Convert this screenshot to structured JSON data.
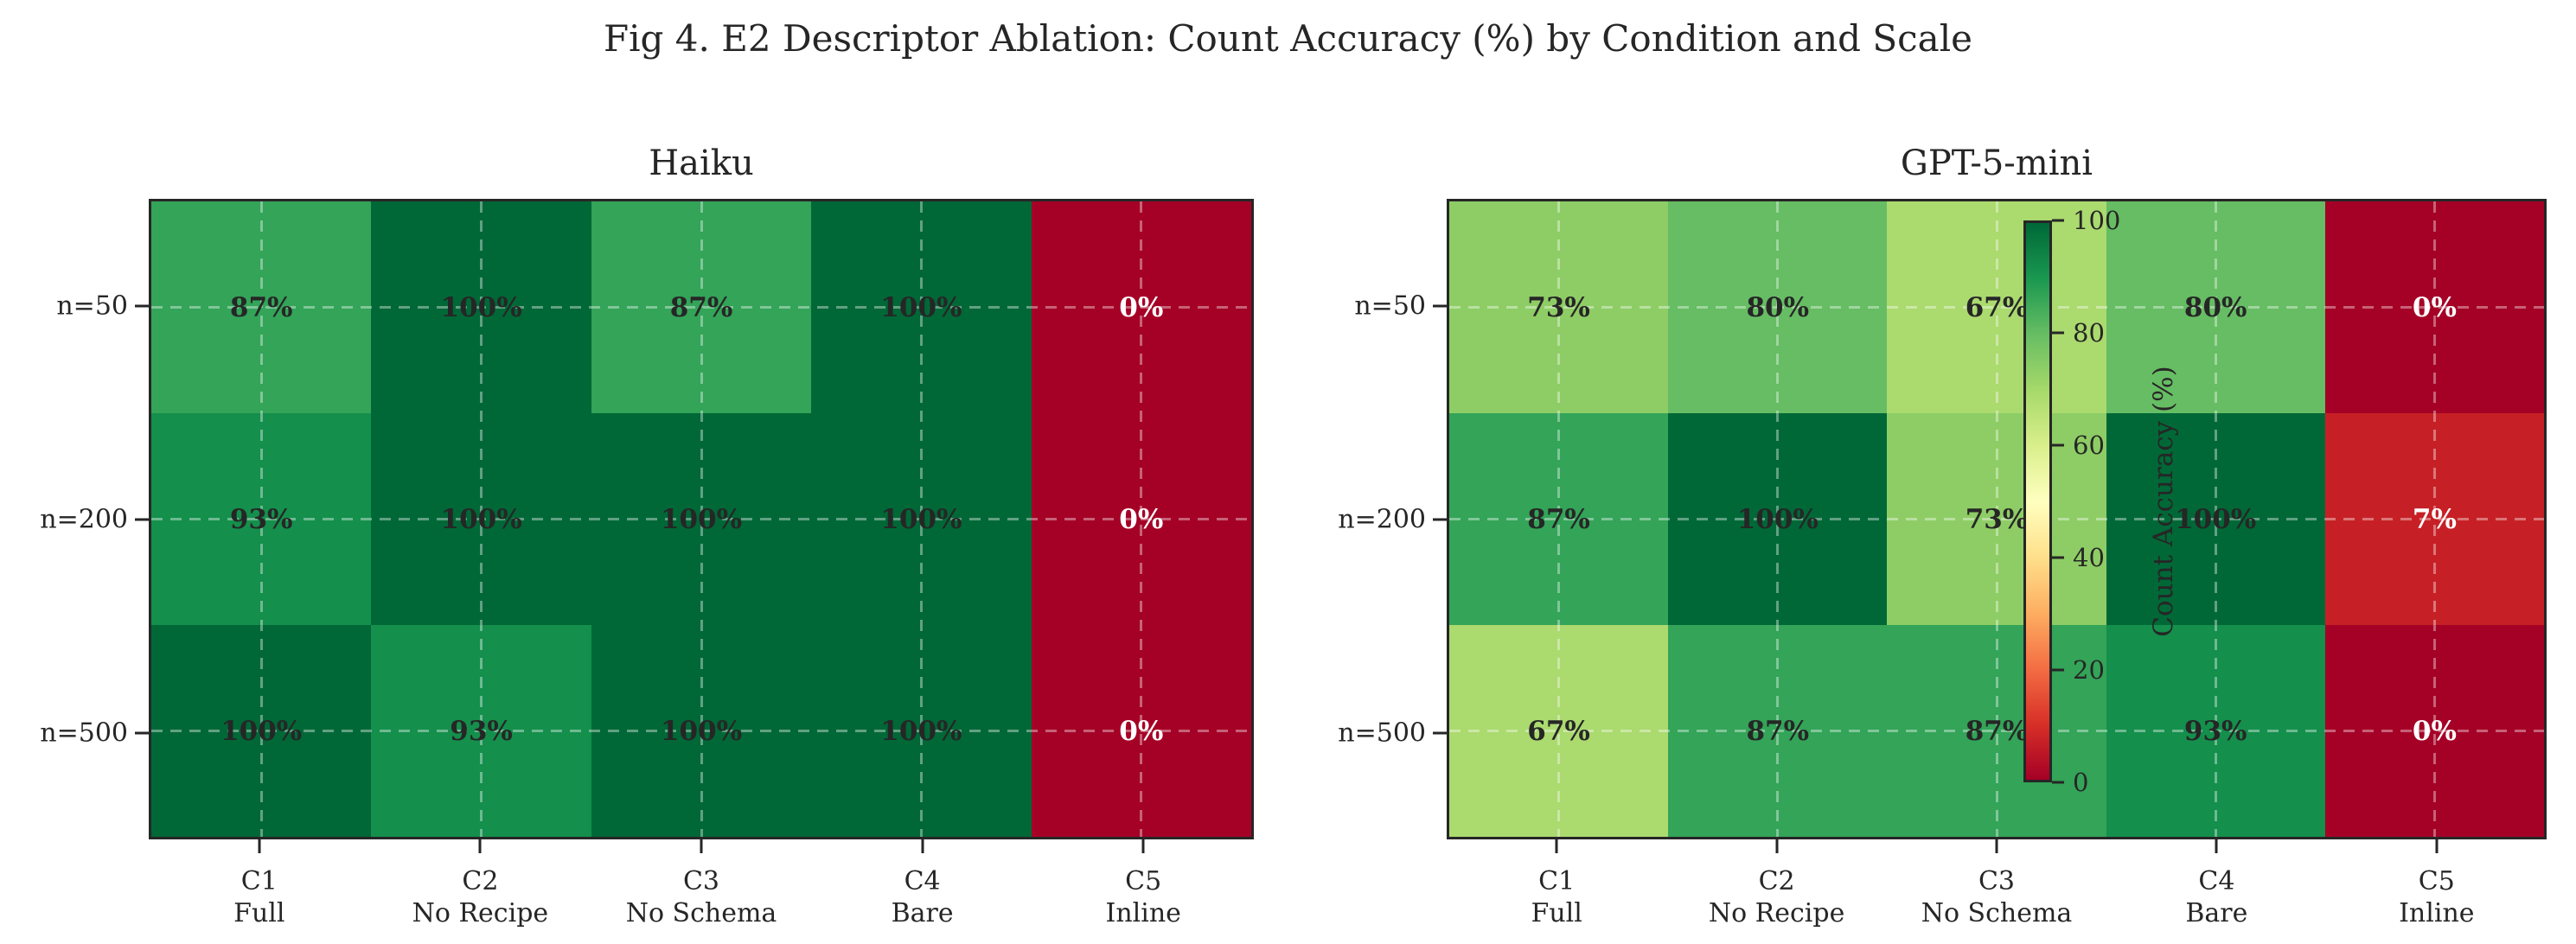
{
  "figure": {
    "suptitle": "Fig 4. E2 Descriptor Ablation: Count Accuracy (%) by Condition and Scale",
    "background": "#ffffff",
    "text_color": "#262626"
  },
  "chart_data": {
    "type": "heatmap",
    "title": "Fig 4. E2 Descriptor Ablation: Count Accuracy (%) by Condition and Scale",
    "rows": [
      "n=50",
      "n=200",
      "n=500"
    ],
    "columns": [
      {
        "code": "C1",
        "name": "Full"
      },
      {
        "code": "C2",
        "name": "No Recipe"
      },
      {
        "code": "C3",
        "name": "No Schema"
      },
      {
        "code": "C4",
        "name": "Bare"
      },
      {
        "code": "C5",
        "name": "Inline"
      }
    ],
    "value_suffix": "%",
    "panels": [
      {
        "title": "Haiku",
        "values": [
          [
            87,
            100,
            87,
            100,
            0
          ],
          [
            93,
            100,
            100,
            100,
            0
          ],
          [
            100,
            93,
            100,
            100,
            0
          ]
        ]
      },
      {
        "title": "GPT-5-mini",
        "values": [
          [
            73,
            80,
            67,
            80,
            0
          ],
          [
            87,
            100,
            73,
            100,
            7
          ],
          [
            67,
            87,
            87,
            93,
            0
          ]
        ]
      }
    ],
    "colorbar": {
      "label": "Count Accuracy (%)",
      "ticks": [
        "100",
        "80",
        "60",
        "40",
        "20",
        "0"
      ],
      "min": 0,
      "max": 100,
      "colormap": "RdYlGn",
      "gradient_top_to_bottom": [
        "#006837",
        "#1a9850",
        "#66bd63",
        "#a6d96a",
        "#d9ef8b",
        "#ffffbf",
        "#fee08b",
        "#fdae61",
        "#f46d43",
        "#d73027",
        "#a50026"
      ]
    },
    "value_colors": {
      "0": "#a50026",
      "7": "#c62026",
      "67": "#abda6f",
      "73": "#8ecd65",
      "80": "#66bd63",
      "87": "#33a458",
      "93": "#148f4c",
      "100": "#006837"
    },
    "cell_text_dark": "#262626",
    "cell_text_light": "#ffffff",
    "light_text_below_value": 30,
    "grid_color": "rgba(255,255,255,0.38)",
    "spine_color": "#262626",
    "gridlines": "dashed, at row and column centers",
    "legend_position": "colorbar overlaid inside right panel"
  }
}
